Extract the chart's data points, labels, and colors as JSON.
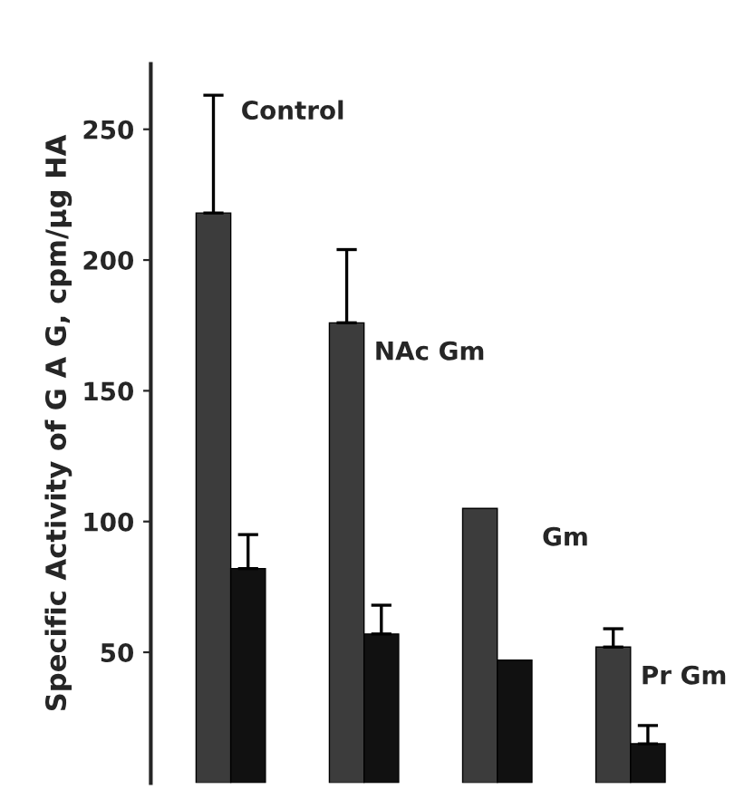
{
  "chart_data": {
    "type": "bar",
    "ylabel": "Specific Activity of G A G, cpm/µg HA",
    "categories": [
      null,
      null,
      null,
      null
    ],
    "series": [
      {
        "color": "#3c3c3c",
        "values": [
          218,
          176,
          105,
          52
        ],
        "errors": [
          [
            218,
            263
          ],
          [
            176,
            204
          ],
          null,
          [
            52,
            59
          ]
        ]
      },
      {
        "color": "#111111",
        "values": [
          82,
          57,
          47,
          15
        ],
        "errors": [
          [
            82,
            95
          ],
          [
            57,
            68
          ],
          null,
          [
            15,
            22
          ]
        ]
      }
    ],
    "ylim": [
      0,
      275
    ],
    "yticks": [
      50,
      100,
      150,
      200,
      250
    ],
    "tick_labels": "y",
    "grid": false,
    "legend": false,
    "annotations": [
      "Control",
      "NAc Gm",
      "Gm",
      "Pr Gm"
    ]
  }
}
